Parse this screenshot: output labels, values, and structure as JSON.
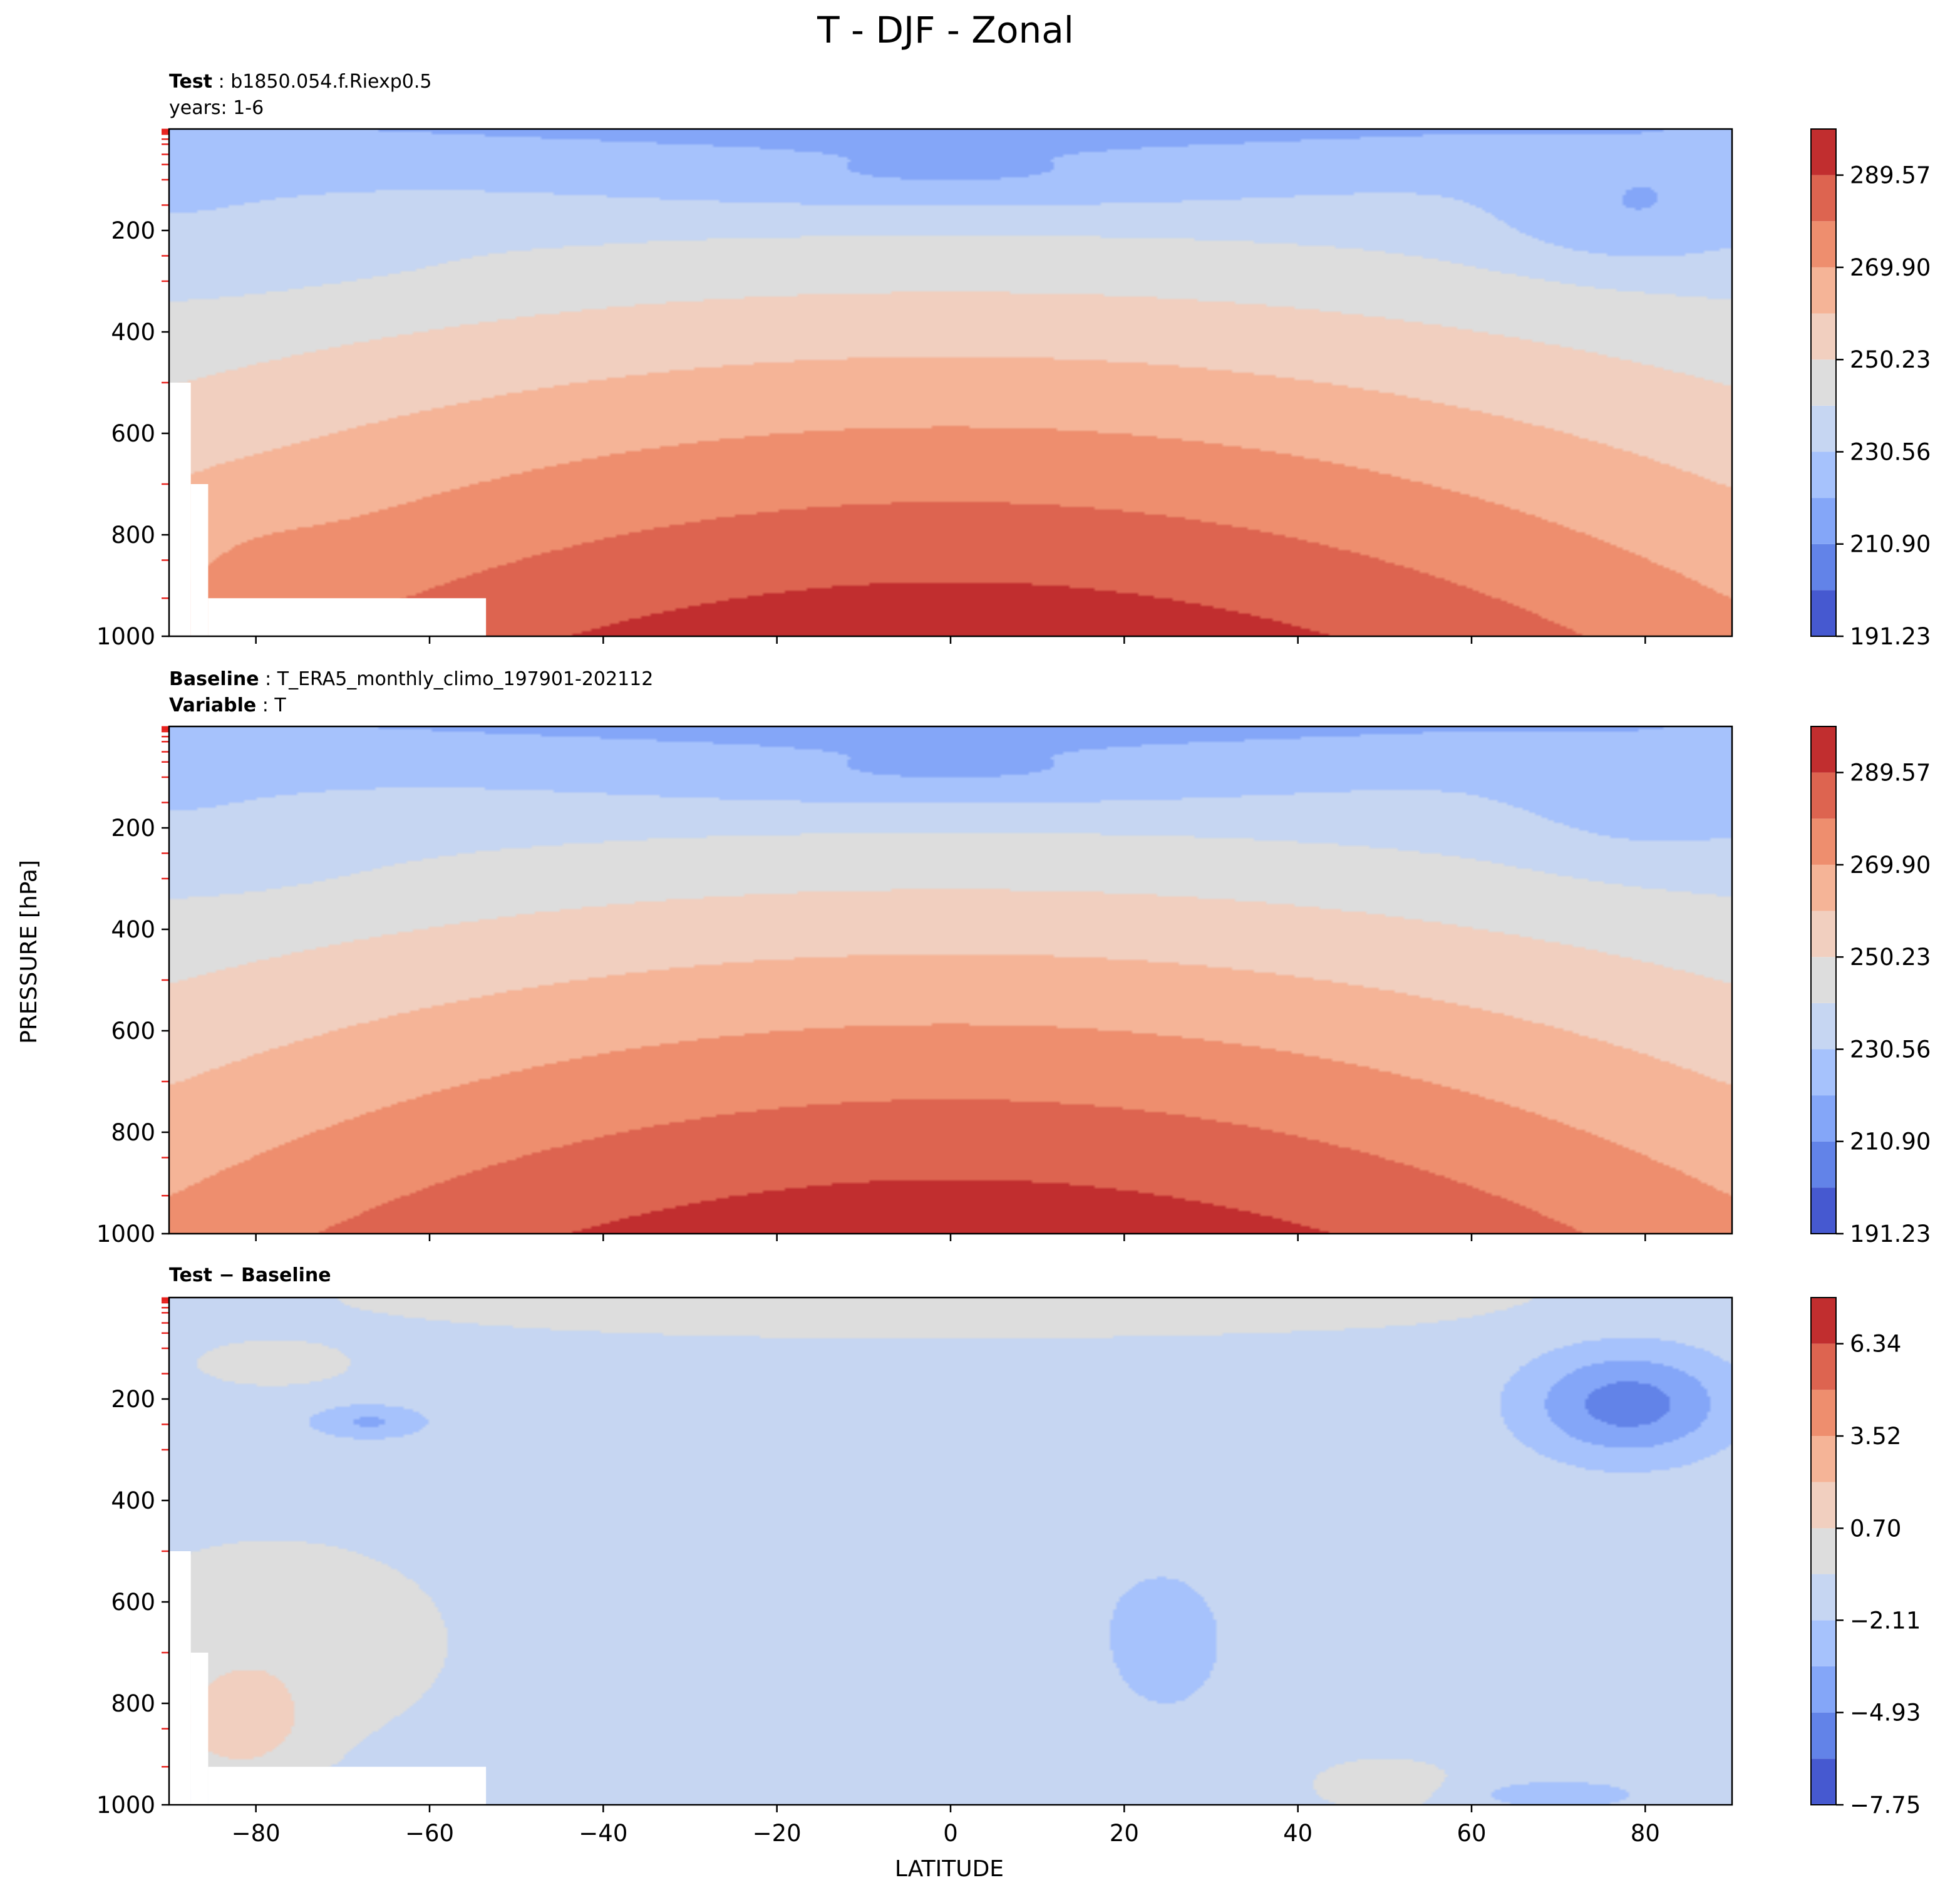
{
  "chart_data": {
    "type": "contour",
    "title": "T - DJF - Zonal",
    "xlabel": "LATITUDE",
    "ylabel": "PRESSURE [hPa]",
    "xlim": [
      -90,
      90
    ],
    "ylim": [
      1000,
      0
    ],
    "x_ticks": [
      -80,
      -60,
      -40,
      -20,
      0,
      20,
      40,
      60,
      80
    ],
    "x_tick_labels": [
      "−80",
      "−60",
      "−40",
      "−20",
      "0",
      "20",
      "40",
      "60",
      "80"
    ],
    "y_ticks": [
      200,
      400,
      600,
      800,
      1000
    ],
    "y_tick_labels": [
      "200",
      "400",
      "600",
      "800",
      "1000"
    ],
    "minor_pressure_levels": [
      1,
      2,
      3,
      5,
      7,
      10,
      20,
      30,
      50,
      70,
      100,
      150,
      250,
      300,
      500,
      700,
      850,
      925
    ],
    "missing_region": {
      "lat_max": -53.5,
      "surface_pressure_blocks": [
        [
          -90,
          -87.5,
          500
        ],
        [
          -87.5,
          -85.5,
          700
        ],
        [
          -85.5,
          -53.5,
          925
        ]
      ]
    },
    "panels": [
      {
        "id": "test",
        "header_lines": [
          [
            {
              "text": "Test",
              "bold": true
            },
            {
              "text": " : b1850.054.f.Riexp0.5",
              "bold": false
            }
          ],
          [
            {
              "text": "years: 1-6",
              "bold": false
            }
          ]
        ],
        "field": "temperature",
        "colorbar": {
          "levels": [
            191.23,
            201.06,
            210.9,
            220.73,
            230.56,
            240.4,
            250.23,
            260.06,
            269.9,
            279.73,
            289.57,
            299.4
          ],
          "tick_values": [
            191.23,
            210.9,
            230.56,
            250.23,
            269.9,
            289.57
          ],
          "tick_labels": [
            "191.23",
            "210.90",
            "230.56",
            "250.23",
            "269.90",
            "289.57"
          ],
          "colors": [
            "#4659d0",
            "#6283e8",
            "#84a6f8",
            "#a6c2fc",
            "#c6d6f2",
            "#dddddd",
            "#f1cfbf",
            "#f5b497",
            "#ee8e6e",
            "#dd6450",
            "#c12e2f"
          ]
        }
      },
      {
        "id": "baseline",
        "header_lines": [
          [
            {
              "text": "Baseline",
              "bold": true
            },
            {
              "text": " : T_ERA5_monthly_climo_197901-202112",
              "bold": false
            }
          ],
          [
            {
              "text": "Variable",
              "bold": true
            },
            {
              "text": " : T",
              "bold": false
            }
          ]
        ],
        "field": "temperature",
        "colorbar": {
          "levels": [
            191.23,
            201.06,
            210.9,
            220.73,
            230.56,
            240.4,
            250.23,
            260.06,
            269.9,
            279.73,
            289.57,
            299.4
          ],
          "tick_values": [
            191.23,
            210.9,
            230.56,
            250.23,
            269.9,
            289.57
          ],
          "tick_labels": [
            "191.23",
            "210.90",
            "230.56",
            "250.23",
            "269.90",
            "289.57"
          ],
          "colors": [
            "#4659d0",
            "#6283e8",
            "#84a6f8",
            "#a6c2fc",
            "#c6d6f2",
            "#dddddd",
            "#f1cfbf",
            "#f5b497",
            "#ee8e6e",
            "#dd6450",
            "#c12e2f"
          ]
        }
      },
      {
        "id": "difference",
        "header_lines": [
          [
            {
              "text": "Test − Baseline",
              "bold": true
            }
          ]
        ],
        "field": "difference",
        "colorbar": {
          "levels": [
            -7.75,
            -6.34,
            -4.93,
            -3.52,
            -2.11,
            -0.7,
            0.7,
            2.11,
            3.52,
            4.93,
            6.34,
            7.75
          ],
          "tick_values": [
            -7.75,
            -4.93,
            -2.11,
            0.7,
            3.52,
            6.34
          ],
          "tick_labels": [
            "−7.75",
            "−4.93",
            "−2.11",
            "0.70",
            "3.52",
            "6.34"
          ],
          "colors": [
            "#4659d0",
            "#6283e8",
            "#84a6f8",
            "#a6c2fc",
            "#c6d6f2",
            "#dddddd",
            "#f1cfbf",
            "#f5b497",
            "#ee8e6e",
            "#dd6450",
            "#c12e2f"
          ]
        }
      }
    ]
  }
}
